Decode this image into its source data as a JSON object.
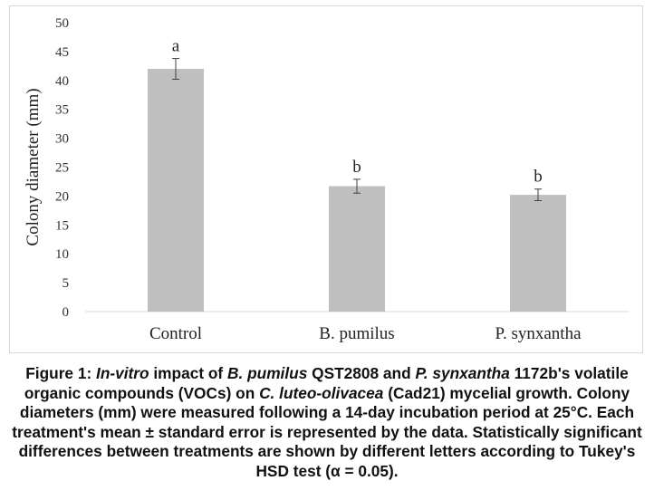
{
  "chart_data": {
    "type": "bar",
    "categories": [
      "Control",
      "B. pumilus",
      "P. synxantha"
    ],
    "values": [
      42.0,
      21.7,
      20.2
    ],
    "errors": [
      1.8,
      1.2,
      1.0
    ],
    "significance_letters": [
      "a",
      "b",
      "b"
    ],
    "ylabel": "Colony diameter (mm)",
    "xlabel": "",
    "ylim": [
      0,
      50
    ],
    "yticks": [
      0,
      5,
      10,
      15,
      20,
      25,
      30,
      35,
      40,
      45,
      50
    ],
    "grid": false,
    "legend": "none",
    "bar_color": "#bfbfbf",
    "error_color": "#404040"
  },
  "caption": {
    "parts": [
      {
        "text": "Figure 1: ",
        "style": "normal"
      },
      {
        "text": "In-vitro",
        "style": "italic"
      },
      {
        "text": " impact of ",
        "style": "normal"
      },
      {
        "text": "B. pumilus",
        "style": "italic"
      },
      {
        "text": " QST2808 and ",
        "style": "normal"
      },
      {
        "text": "P. synxantha",
        "style": "italic"
      },
      {
        "text": " 1172b's volatile organic compounds (VOCs) on ",
        "style": "normal"
      },
      {
        "text": "C. luteo-olivacea",
        "style": "italic"
      },
      {
        "text": " (Cad21) mycelial growth. Colony diameters (mm) were measured following a 14-day incubation period at 25°C. Each treatment's mean ± standard error is represented by the data. Statistically significant differences between treatments are shown by different letters according to Tukey's HSD test (α = 0.05).",
        "style": "normal"
      }
    ]
  }
}
